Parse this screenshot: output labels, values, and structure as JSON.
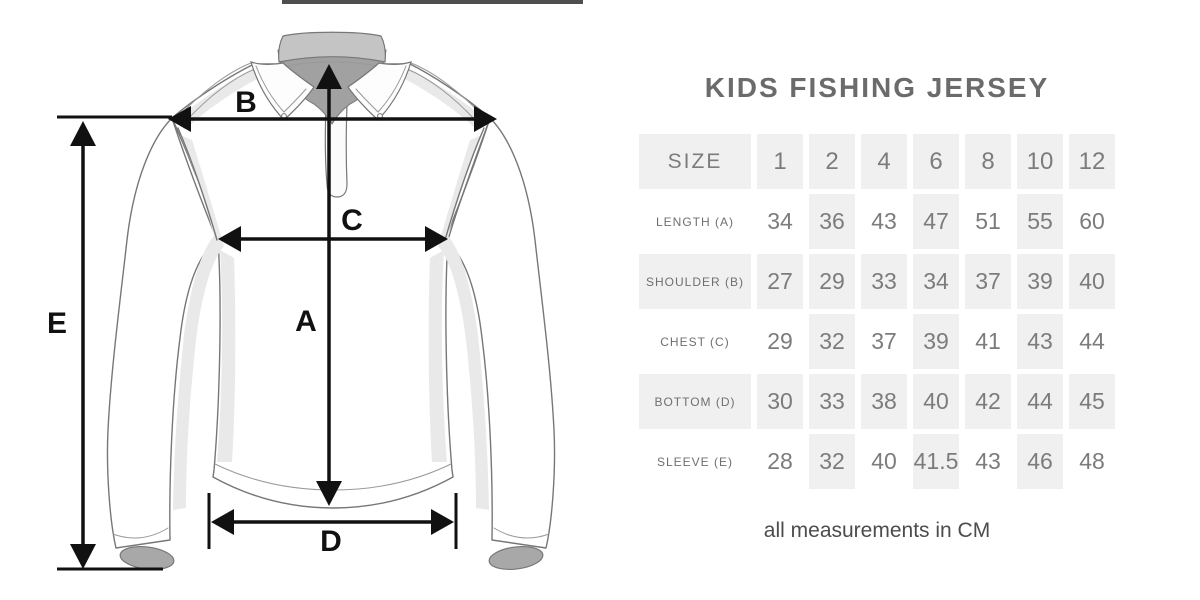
{
  "header": {
    "title": "KIDS FISHING JERSEY"
  },
  "diagram": {
    "labels": {
      "length": "A",
      "shoulder": "B",
      "chest": "C",
      "bottom": "D",
      "sleeve": "E"
    }
  },
  "table": {
    "header": {
      "label": "SIZE",
      "sizes": [
        "1",
        "2",
        "4",
        "6",
        "8",
        "10",
        "12"
      ]
    },
    "rows": [
      {
        "label": "LENGTH (A)",
        "values": [
          "34",
          "36",
          "43",
          "47",
          "51",
          "55",
          "60"
        ]
      },
      {
        "label": "SHOULDER (B)",
        "values": [
          "27",
          "29",
          "33",
          "34",
          "37",
          "39",
          "40"
        ]
      },
      {
        "label": "CHEST (C)",
        "values": [
          "29",
          "32",
          "37",
          "39",
          "41",
          "43",
          "44"
        ]
      },
      {
        "label": "BOTTOM (D)",
        "values": [
          "30",
          "33",
          "38",
          "40",
          "42",
          "44",
          "45"
        ]
      },
      {
        "label": "SLEEVE (E)",
        "values": [
          "28",
          "32",
          "40",
          "41.5",
          "43",
          "46",
          "48"
        ]
      }
    ]
  },
  "footer": {
    "note": "all measurements in CM"
  },
  "colors": {
    "cell_bg": "#f0f0f0",
    "title_text": "#6b6b6b",
    "value_text": "#7c7c7c",
    "label_text": "#6f6f6f",
    "footer_text": "#4c4c4c",
    "arrow": "#111111",
    "collar_inner": "#c4c4c4",
    "neck_inner": "#a1a1a1",
    "cuff_opening": "#a8a8a8"
  }
}
